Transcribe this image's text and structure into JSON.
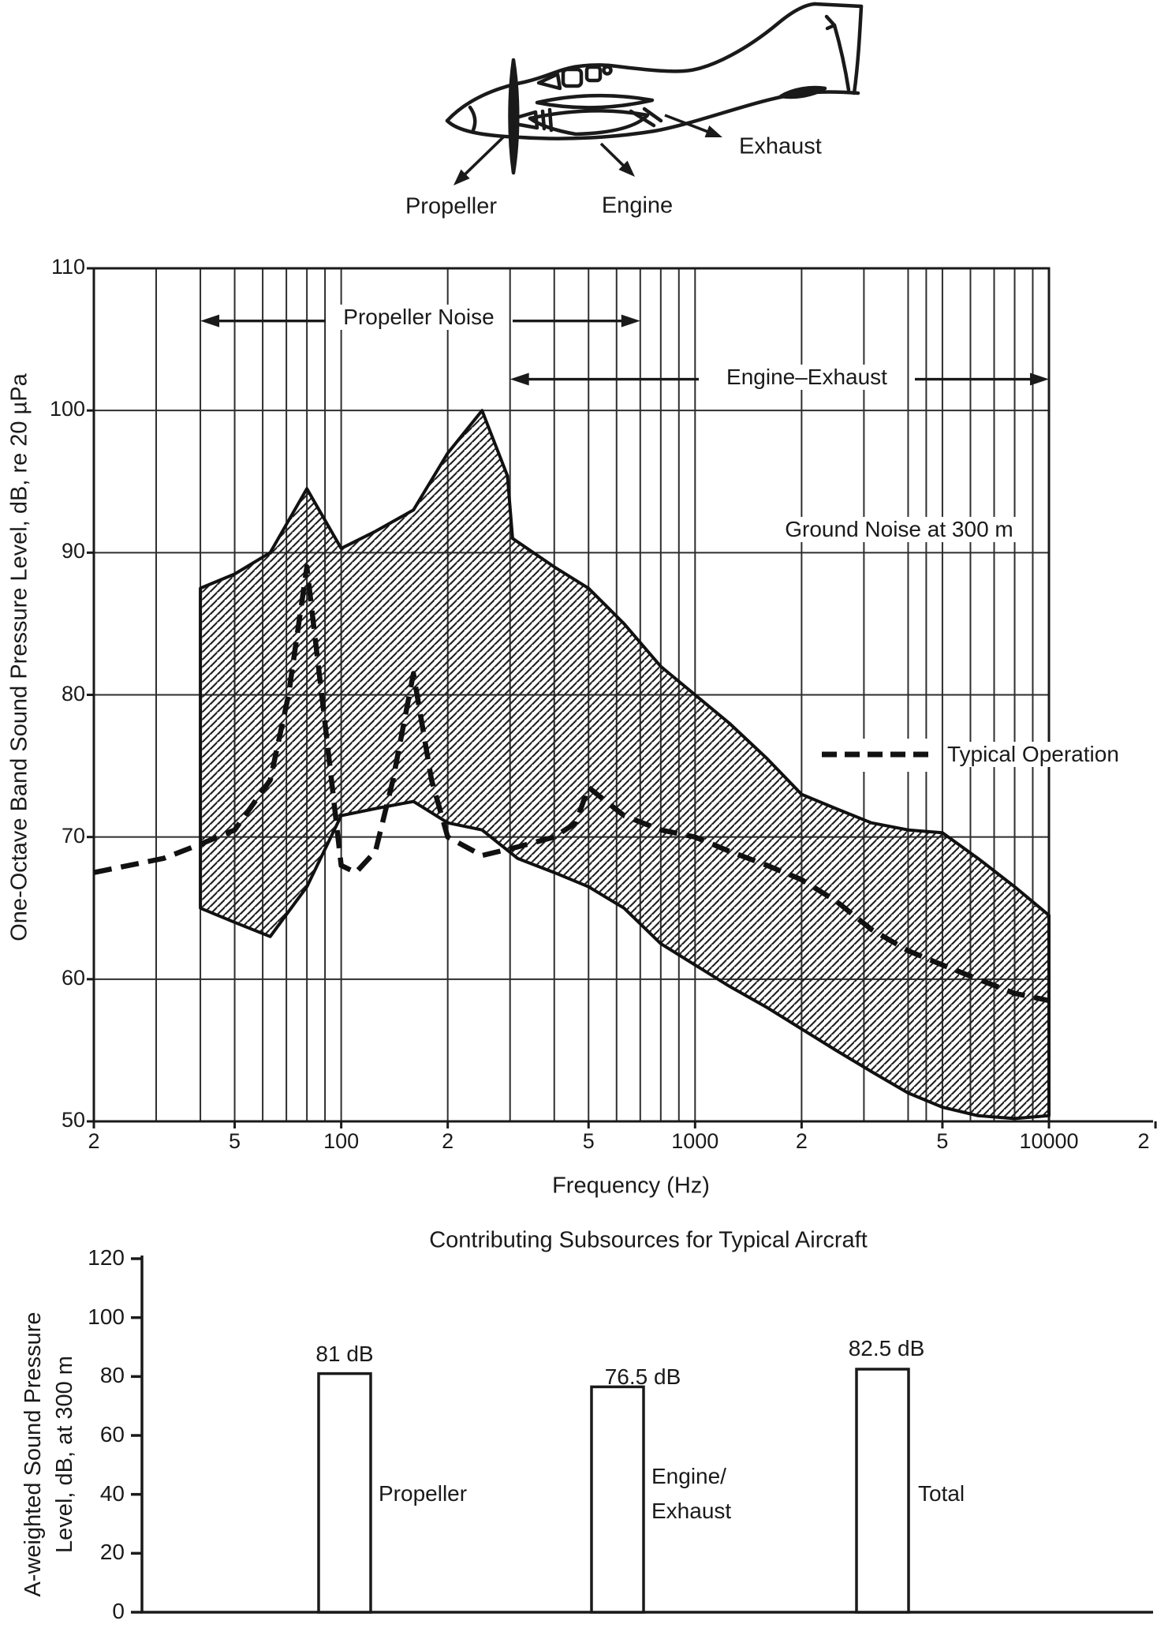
{
  "aircraft_inset": {
    "part_labels": {
      "propeller": "Propeller",
      "engine": "Engine",
      "exhaust": "Exhaust"
    }
  },
  "top_chart": {
    "ylabel": "One-Octave Band Sound Pressure Level, dB, re 20 µPa",
    "xlabel": "Frequency (Hz)",
    "y_tick_labels": [
      "110",
      "100",
      "90",
      "80",
      "70",
      "60",
      "50"
    ],
    "x_tick_labels": [
      "2",
      "5",
      "100",
      "2",
      "5",
      "1000",
      "2",
      "5",
      "10000",
      "2"
    ],
    "annotations": {
      "propeller_noise": "Propeller Noise",
      "engine_exhaust": "Engine–Exhaust",
      "ground_noise": "Ground Noise at 300 m",
      "legend_typical_operation": "Typical Operation"
    }
  },
  "bottom_chart": {
    "title": "Contributing Subsources for Typical Aircraft",
    "ylabel_line1": "A-weighted Sound Pressure",
    "ylabel_line2": "Level, dB, at 300 m",
    "y_tick_labels": [
      "120",
      "100",
      "80",
      "60",
      "40",
      "20",
      "0"
    ]
  },
  "chart_data": [
    {
      "type": "area",
      "title": "Ground noise envelope at 300 m with typical operation spectrum",
      "xlabel": "Frequency (Hz)",
      "ylabel": "One-Octave Band Sound Pressure Level, dB, re 20 µPa",
      "x_scale": "log",
      "xlim": [
        20,
        10000
      ],
      "ylim": [
        50,
        110
      ],
      "x_ticks": [
        20,
        50,
        100,
        200,
        500,
        1000,
        2000,
        5000,
        10000,
        20000
      ],
      "y_ticks": [
        110,
        100,
        90,
        80,
        70,
        60,
        50
      ],
      "grid": "log-decade ruling, on",
      "legend_position": "right-middle",
      "propeller_noise_band_hz": [
        40,
        700
      ],
      "engine_exhaust_band_hz": [
        300,
        10000
      ],
      "series": [
        {
          "name": "Ground Noise at 300 m - upper bound",
          "style": "solid",
          "points": [
            [
              40,
              87.5
            ],
            [
              50,
              88.5
            ],
            [
              63,
              90
            ],
            [
              80,
              94.5
            ],
            [
              100,
              90.3
            ],
            [
              125,
              91.5
            ],
            [
              160,
              93
            ],
            [
              200,
              97
            ],
            [
              250,
              100
            ],
            [
              295,
              95.4
            ],
            [
              305,
              91
            ],
            [
              400,
              89
            ],
            [
              500,
              87.5
            ],
            [
              630,
              85
            ],
            [
              800,
              82
            ],
            [
              1000,
              80
            ],
            [
              1250,
              78
            ],
            [
              1600,
              75.5
            ],
            [
              2000,
              73
            ],
            [
              2500,
              72
            ],
            [
              3150,
              71
            ],
            [
              4000,
              70.5
            ],
            [
              5000,
              70.3
            ],
            [
              6300,
              68.5
            ],
            [
              8000,
              66.5
            ],
            [
              10000,
              64.5
            ]
          ]
        },
        {
          "name": "Ground Noise at 300 m - lower bound",
          "style": "solid",
          "points": [
            [
              40,
              65
            ],
            [
              50,
              64
            ],
            [
              63,
              63
            ],
            [
              80,
              66.5
            ],
            [
              100,
              71.5
            ],
            [
              125,
              72
            ],
            [
              160,
              72.5
            ],
            [
              200,
              71
            ],
            [
              250,
              70.5
            ],
            [
              315,
              68.5
            ],
            [
              400,
              67.5
            ],
            [
              500,
              66.5
            ],
            [
              630,
              65
            ],
            [
              800,
              62.5
            ],
            [
              1000,
              61
            ],
            [
              1250,
              59.5
            ],
            [
              1600,
              58
            ],
            [
              2000,
              56.5
            ],
            [
              2500,
              55
            ],
            [
              3150,
              53.5
            ],
            [
              4000,
              52
            ],
            [
              5000,
              51
            ],
            [
              6300,
              50.4
            ],
            [
              8000,
              50.2
            ],
            [
              10000,
              50.4
            ]
          ]
        },
        {
          "name": "Typical Operation",
          "style": "dashed",
          "points": [
            [
              20,
              67.5
            ],
            [
              31.5,
              68.5
            ],
            [
              40,
              69.5
            ],
            [
              50,
              70.5
            ],
            [
              63,
              74
            ],
            [
              71,
              80
            ],
            [
              80,
              89
            ],
            [
              90,
              78
            ],
            [
              100,
              68
            ],
            [
              110,
              67.5
            ],
            [
              125,
              69
            ],
            [
              140,
              74
            ],
            [
              160,
              81.5
            ],
            [
              180,
              74
            ],
            [
              200,
              70
            ],
            [
              250,
              68.7
            ],
            [
              315,
              69.3
            ],
            [
              400,
              70
            ],
            [
              460,
              71
            ],
            [
              500,
              73.5
            ],
            [
              560,
              72.5
            ],
            [
              630,
              71.5
            ],
            [
              800,
              70.5
            ],
            [
              1000,
              70
            ],
            [
              1250,
              69
            ],
            [
              1600,
              68
            ],
            [
              2000,
              67
            ],
            [
              2500,
              65.5
            ],
            [
              3150,
              63.5
            ],
            [
              4000,
              62
            ],
            [
              5000,
              61
            ],
            [
              6300,
              60
            ],
            [
              8000,
              59
            ],
            [
              10000,
              58.5
            ]
          ]
        }
      ]
    },
    {
      "type": "bar",
      "title": "Contributing Subsources for Typical Aircraft",
      "xlabel": "",
      "ylabel": "A-weighted Sound Pressure Level, dB, at 300 m",
      "categories": [
        "Propeller",
        "Engine/Exhaust",
        "Total"
      ],
      "category_display": [
        [
          "Propeller"
        ],
        [
          "Engine/",
          "Exhaust"
        ],
        [
          "Total"
        ]
      ],
      "values": [
        81,
        76.5,
        82.5
      ],
      "value_labels": [
        "81 dB",
        "76.5 dB",
        "82.5 dB"
      ],
      "ylim": [
        0,
        120
      ],
      "y_ticks": [
        0,
        20,
        40,
        60,
        80,
        100,
        120
      ],
      "grid": "off"
    }
  ]
}
